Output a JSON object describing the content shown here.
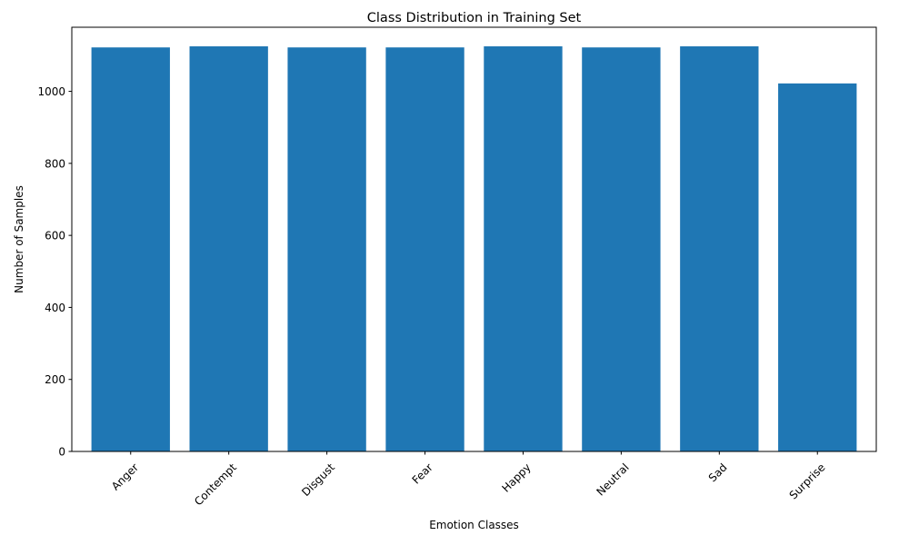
{
  "chart_data": {
    "type": "bar",
    "title": "Class Distribution in Training Set",
    "xlabel": "Emotion Classes",
    "ylabel": "Number of Samples",
    "categories": [
      "Anger",
      "Contempt",
      "Disgust",
      "Fear",
      "Happy",
      "Neutral",
      "Sad",
      "Surprise"
    ],
    "values": [
      1122,
      1125,
      1122,
      1122,
      1125,
      1122,
      1125,
      1022
    ],
    "ylim": [
      0,
      1178
    ],
    "yticks": [
      0,
      200,
      400,
      600,
      800,
      1000
    ],
    "x_tick_rotation_deg": 45,
    "grid": false,
    "legend": "none",
    "colors": {
      "bar": "#1f77b4",
      "axis": "#000000",
      "background": "#ffffff"
    }
  }
}
